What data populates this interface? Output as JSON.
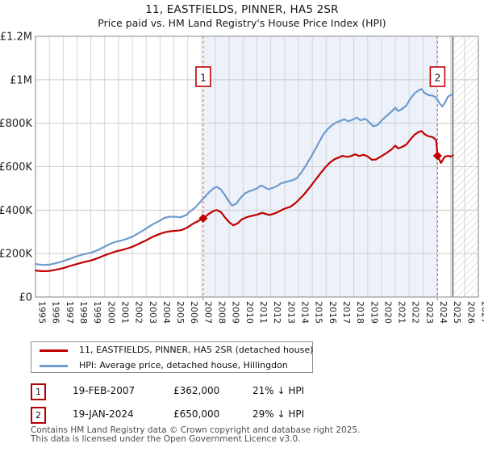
{
  "title": {
    "line1": "11, EASTFIELDS, PINNER, HA5 2SR",
    "line2": "Price paid vs. HM Land Registry's House Price Index (HPI)"
  },
  "colors": {
    "price_line": "#c00000",
    "hpi_line": "#6d9bce",
    "marker_dash": "#ee6666",
    "shaded_region": "#edf2fa",
    "grid_v": "#d4d4d4",
    "grid_h": "#cbcbcb",
    "plot_border": "#999999",
    "hatch_line": "#c4c4c4",
    "axis_label": "#222222"
  },
  "chart_data": {
    "type": "line",
    "title": "11, EASTFIELDS, PINNER, HA5 2SR",
    "subtitle": "Price paid vs. HM Land Registry's House Price Index (HPI)",
    "x_range": [
      1995,
      2027
    ],
    "y_range": [
      0,
      1200000
    ],
    "grid": true,
    "y_tick_values": [
      0,
      200000,
      400000,
      600000,
      800000,
      1000000,
      1200000
    ],
    "y_ticks": [
      "£0",
      "£200K",
      "£400K",
      "£600K",
      "£800K",
      "£1M",
      "£1.2M"
    ],
    "x_ticks": [
      1995,
      1996,
      1997,
      1998,
      1999,
      2000,
      2001,
      2002,
      2003,
      2004,
      2005,
      2006,
      2007,
      2008,
      2009,
      2010,
      2011,
      2012,
      2013,
      2014,
      2015,
      2016,
      2017,
      2018,
      2019,
      2020,
      2021,
      2022,
      2023,
      2024,
      2025,
      2026,
      2027
    ],
    "shaded_region": {
      "from": 2007.12,
      "to": 2024.05
    },
    "hatched_region": {
      "from": 2025.15,
      "to": 2027
    },
    "markers": [
      {
        "label": "1",
        "year": 2007.12,
        "value": 362000
      },
      {
        "label": "2",
        "year": 2024.05,
        "value": 650000
      }
    ],
    "series": [
      {
        "name": "HPI: Average price, detached house, Hillingdon",
        "color": "#6d9bce",
        "x": [
          1995.0,
          1995.5,
          1996.0,
          1996.5,
          1997.0,
          1997.5,
          1998.0,
          1998.5,
          1999.0,
          1999.5,
          2000.0,
          2000.4,
          2000.8,
          2001.2,
          2001.6,
          2002.0,
          2002.5,
          2003.0,
          2003.5,
          2004.0,
          2004.3,
          2004.7,
          2005.1,
          2005.5,
          2005.9,
          2006.2,
          2006.6,
          2007.0,
          2007.12,
          2007.5,
          2007.9,
          2008.1,
          2008.4,
          2008.7,
          2009.0,
          2009.2,
          2009.5,
          2009.8,
          2010.1,
          2010.4,
          2010.7,
          2011.0,
          2011.3,
          2011.5,
          2011.8,
          2012.1,
          2012.4,
          2012.7,
          2013.0,
          2013.3,
          2013.6,
          2013.9,
          2014.2,
          2014.6,
          2015.0,
          2015.4,
          2015.8,
          2016.1,
          2016.4,
          2016.7,
          2017.0,
          2017.3,
          2017.6,
          2017.9,
          2018.2,
          2018.5,
          2018.8,
          2019.1,
          2019.4,
          2019.7,
          2020.0,
          2020.4,
          2020.7,
          2021.0,
          2021.2,
          2021.5,
          2021.8,
          2022.1,
          2022.4,
          2022.7,
          2022.9,
          2023.1,
          2023.4,
          2023.7,
          2023.9,
          2024.05,
          2024.2,
          2024.4,
          2024.6,
          2024.8,
          2025.0,
          2025.15
        ],
        "values": [
          152000,
          148000,
          149000,
          156000,
          165000,
          176000,
          188000,
          197000,
          204000,
          216000,
          232000,
          245000,
          254000,
          260000,
          268000,
          278000,
          296000,
          315000,
          336000,
          352000,
          364000,
          370000,
          369000,
          367000,
          378000,
          395000,
          415000,
          445000,
          452000,
          480000,
          502000,
          507000,
          495000,
          468000,
          438000,
          421000,
          429000,
          455000,
          475000,
          486000,
          492000,
          500000,
          513000,
          508000,
          496000,
          501000,
          509000,
          522000,
          528000,
          533000,
          538000,
          548000,
          572000,
          612000,
          655000,
          702000,
          748000,
          772000,
          790000,
          803000,
          810000,
          818000,
          809000,
          816000,
          826000,
          813000,
          821000,
          806000,
          786000,
          791000,
          812000,
          836000,
          852000,
          872000,
          856000,
          866000,
          882000,
          914000,
          938000,
          952000,
          957000,
          940000,
          929000,
          927000,
          920000,
          908000,
          891000,
          877000,
          896000,
          922000,
          930000,
          932000
        ]
      },
      {
        "name": "11, EASTFIELDS, PINNER, HA5 2SR (detached house)",
        "color": "#c00000",
        "x": [
          1995.0,
          1995.5,
          1996.0,
          1996.5,
          1997.0,
          1997.5,
          1998.0,
          1998.5,
          1999.0,
          1999.5,
          2000.0,
          2000.4,
          2000.8,
          2001.2,
          2001.6,
          2002.0,
          2002.5,
          2003.0,
          2003.5,
          2004.0,
          2004.4,
          2004.8,
          2005.2,
          2005.6,
          2006.0,
          2006.4,
          2006.8,
          2007.12,
          2007.5,
          2007.9,
          2008.1,
          2008.4,
          2008.7,
          2009.0,
          2009.3,
          2009.6,
          2009.9,
          2010.2,
          2010.5,
          2010.8,
          2011.1,
          2011.4,
          2011.6,
          2011.9,
          2012.2,
          2012.5,
          2012.8,
          2013.1,
          2013.4,
          2013.7,
          2014.0,
          2014.4,
          2014.8,
          2015.2,
          2015.6,
          2016.0,
          2016.3,
          2016.6,
          2016.9,
          2017.2,
          2017.5,
          2017.8,
          2018.1,
          2018.4,
          2018.7,
          2019.0,
          2019.3,
          2019.6,
          2019.9,
          2020.3,
          2020.7,
          2021.0,
          2021.2,
          2021.5,
          2021.8,
          2022.1,
          2022.4,
          2022.7,
          2022.9,
          2023.1,
          2023.4,
          2023.7,
          2023.95,
          2024.05,
          2024.3,
          2024.55,
          2024.8,
          2025.0,
          2025.15
        ],
        "values": [
          122000,
          119000,
          120000,
          126000,
          133000,
          143000,
          152000,
          161000,
          168000,
          179000,
          192000,
          201000,
          210000,
          216000,
          223000,
          231000,
          246000,
          261000,
          278000,
          291000,
          299000,
          303000,
          305000,
          309000,
          321000,
          338000,
          351000,
          362000,
          382000,
          397000,
          400000,
          391000,
          366000,
          344000,
          330000,
          339000,
          357000,
          366000,
          372000,
          376000,
          381000,
          388000,
          383000,
          378000,
          383000,
          391000,
          401000,
          409000,
          415000,
          428000,
          446000,
          472000,
          503000,
          537000,
          570000,
          601000,
          620000,
          634000,
          642000,
          650000,
          645000,
          649000,
          657000,
          649000,
          655000,
          647000,
          632000,
          633000,
          645000,
          660000,
          678000,
          697000,
          684000,
          691000,
          702000,
          726000,
          748000,
          760000,
          764000,
          750000,
          740000,
          736000,
          722000,
          650000,
          617000,
          645000,
          650000,
          646000,
          652000
        ]
      }
    ],
    "legend_position": "below"
  },
  "legend": {
    "items": [
      {
        "label": "11, EASTFIELDS, PINNER, HA5 2SR (detached house)",
        "color": "#c00000"
      },
      {
        "label": "HPI: Average price, detached house, Hillingdon",
        "color": "#6d9bce"
      }
    ]
  },
  "transactions": [
    {
      "num": "1",
      "date": "19-FEB-2007",
      "price": "£362,000",
      "hpi": "21% ↓ HPI"
    },
    {
      "num": "2",
      "date": "19-JAN-2024",
      "price": "£650,000",
      "hpi": "29% ↓ HPI"
    }
  ],
  "footer": {
    "line1": "Contains HM Land Registry data © Crown copyright and database right 2025.",
    "line2": "This data is licensed under the Open Government Licence v3.0."
  }
}
